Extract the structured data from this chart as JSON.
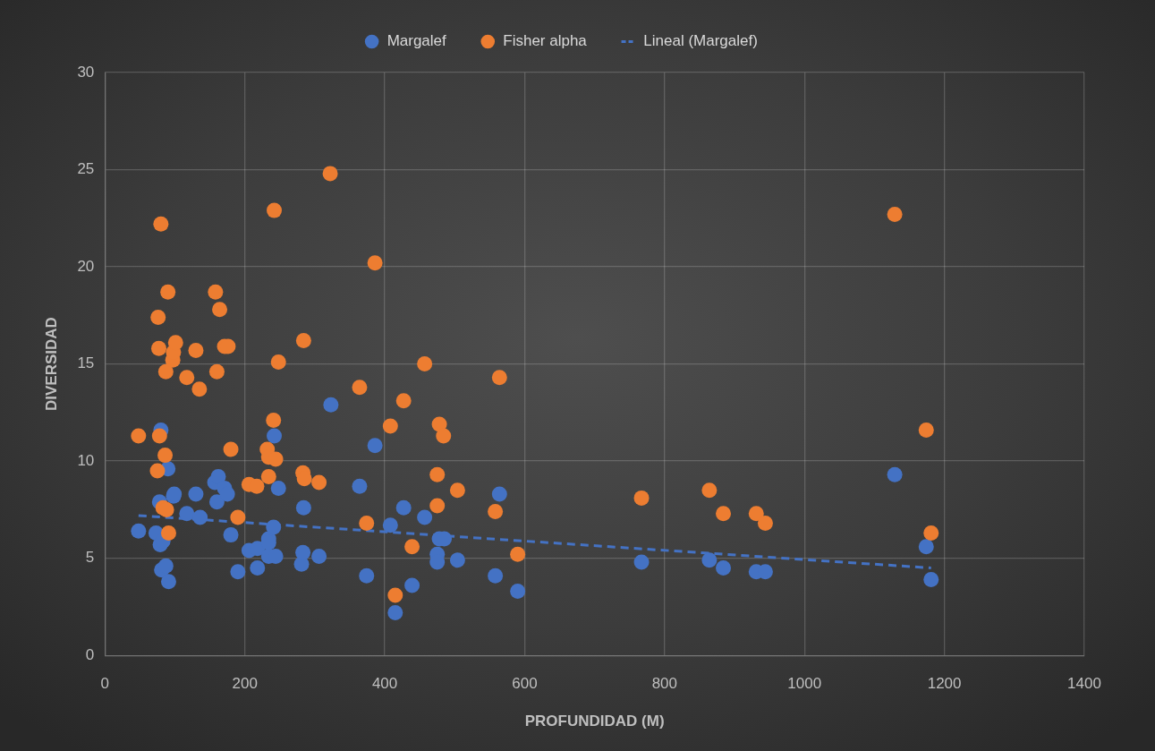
{
  "chart_data": {
    "type": "scatter",
    "xlabel": "PROFUNDIDAD (M)",
    "ylabel": "DIVERSIDAD",
    "xlim": [
      0,
      1400
    ],
    "xticks": [
      0,
      200,
      400,
      600,
      800,
      1000,
      1200,
      1400
    ],
    "ylim": [
      0,
      30
    ],
    "yticks": [
      0,
      5,
      10,
      15,
      20,
      25,
      30
    ],
    "grid": true,
    "legend": "top",
    "marker": "circle",
    "series": [
      {
        "name": "Margalef",
        "color": "#4472c4",
        "x": [
          48,
          73,
          78,
          79,
          80,
          81,
          83,
          87,
          90,
          91,
          98,
          99,
          117,
          130,
          136,
          157,
          160,
          162,
          171,
          175,
          180,
          190,
          206,
          218,
          218,
          234,
          234,
          234,
          241,
          242,
          244,
          248,
          281,
          283,
          284,
          306,
          323,
          364,
          374,
          386,
          408,
          415,
          427,
          439,
          457,
          475,
          475,
          478,
          485,
          504,
          558,
          564,
          590,
          767,
          864,
          884,
          931,
          944,
          1129,
          1174,
          1181
        ],
        "values": [
          6.4,
          6.3,
          7.9,
          5.7,
          11.6,
          4.4,
          5.9,
          4.6,
          9.6,
          3.8,
          8.2,
          8.3,
          7.3,
          8.3,
          7.1,
          8.9,
          7.9,
          9.2,
          8.6,
          8.3,
          6.2,
          4.3,
          5.4,
          5.5,
          4.5,
          6.0,
          5.8,
          5.1,
          6.6,
          11.3,
          5.1,
          8.6,
          4.7,
          5.3,
          7.6,
          5.1,
          12.9,
          8.7,
          4.1,
          10.8,
          6.7,
          2.2,
          7.6,
          3.6,
          7.1,
          5.2,
          4.8,
          6.0,
          6.0,
          4.9,
          4.1,
          8.3,
          3.3,
          4.8,
          4.9,
          4.5,
          4.3,
          4.3,
          9.3,
          5.6,
          3.9
        ]
      },
      {
        "name": "Fisher alpha",
        "color": "#ed7d31",
        "x": [
          48,
          75,
          76,
          77,
          78,
          80,
          83,
          86,
          87,
          88,
          90,
          91,
          97,
          98,
          101,
          117,
          130,
          135,
          158,
          160,
          164,
          171,
          176,
          180,
          190,
          206,
          217,
          232,
          234,
          234,
          241,
          242,
          244,
          248,
          283,
          284,
          285,
          306,
          322,
          364,
          374,
          386,
          408,
          415,
          427,
          439,
          457,
          475,
          475,
          478,
          484,
          504,
          558,
          564,
          590,
          767,
          864,
          884,
          931,
          944,
          1129,
          1174,
          1181
        ],
        "values": [
          11.3,
          9.5,
          17.4,
          15.8,
          11.3,
          22.2,
          7.6,
          10.3,
          14.6,
          7.5,
          18.7,
          6.3,
          15.2,
          15.6,
          16.1,
          14.3,
          15.7,
          13.7,
          18.7,
          14.6,
          17.8,
          15.9,
          15.9,
          10.6,
          7.1,
          8.8,
          8.7,
          10.6,
          10.2,
          9.2,
          12.1,
          22.9,
          10.1,
          15.1,
          9.4,
          16.2,
          9.1,
          8.9,
          24.8,
          13.8,
          6.8,
          20.2,
          11.8,
          3.1,
          13.1,
          5.6,
          15.0,
          9.3,
          7.7,
          11.9,
          11.3,
          8.5,
          7.4,
          14.3,
          5.2,
          8.1,
          8.5,
          7.3,
          7.3,
          6.8,
          22.7,
          11.6,
          6.3
        ]
      },
      {
        "name": "Lineal (Margalef)",
        "type": "line",
        "color": "#4472c4",
        "line_style": "dashed",
        "marker": "none",
        "x": [
          48,
          1181
        ],
        "values": [
          7.2,
          4.5
        ]
      }
    ]
  }
}
